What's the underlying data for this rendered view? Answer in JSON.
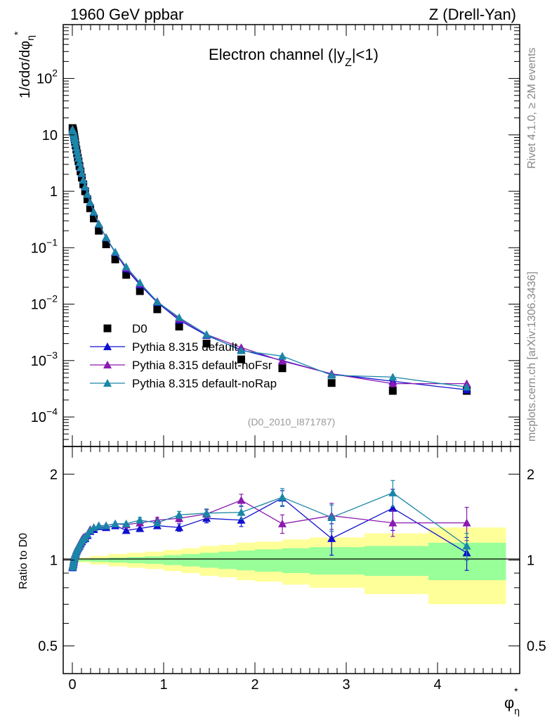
{
  "header": {
    "left_title": "1960 GeV ppbar",
    "right_title": "Z (Drell-Yan)"
  },
  "side_labels": {
    "rivet": "Rivet 4.1.0, ≥ 2M events",
    "mcplots": "mcplots.cern.ch [arXiv:1306.3436]"
  },
  "colors": {
    "data": "#000000",
    "default": "#1010d0",
    "noFsr": "#8a1ab0",
    "noRap": "#1a86a8",
    "band_inner": "#99ff99",
    "band_outer": "#ffff99"
  },
  "chart_data": [
    {
      "type": "scatter",
      "title": "Electron channel (|y_Z|<1)",
      "title_parts": {
        "pre": "Electron channel (|y",
        "sub": "Z",
        "post": "|<1)"
      },
      "watermark": "(D0_2010_I871787)",
      "ylabel": "1/σdσ/dφ*η",
      "yscale": "log",
      "ylim": [
        3e-05,
        900
      ],
      "xlim": [
        -0.1,
        4.9
      ],
      "y_ticks": [
        {
          "value": 100,
          "mant": "10",
          "exp": "2"
        },
        {
          "value": 10,
          "mant": "10",
          "exp": ""
        },
        {
          "value": 1,
          "mant": "1",
          "exp": ""
        },
        {
          "value": 0.1,
          "mant": "10",
          "exp": "−1"
        },
        {
          "value": 0.01,
          "mant": "10",
          "exp": "−2"
        },
        {
          "value": 0.001,
          "mant": "10",
          "exp": "−3"
        },
        {
          "value": 0.0001,
          "mant": "10",
          "exp": "−4"
        }
      ],
      "x": [
        0.002,
        0.006,
        0.01,
        0.014,
        0.018,
        0.022,
        0.026,
        0.03,
        0.036,
        0.044,
        0.052,
        0.06,
        0.068,
        0.078,
        0.09,
        0.104,
        0.12,
        0.14,
        0.165,
        0.195,
        0.235,
        0.29,
        0.37,
        0.47,
        0.59,
        0.74,
        0.93,
        1.17,
        1.47,
        1.85,
        2.3,
        2.84,
        3.51,
        4.32
      ],
      "legend": [
        {
          "key": "data",
          "label": "D0"
        },
        {
          "key": "default",
          "label": "Pythia 8.315 default"
        },
        {
          "key": "noFsr",
          "label": "Pythia 8.315 default-noFsr"
        },
        {
          "key": "noRap",
          "label": "Pythia 8.315 default-noRap"
        }
      ],
      "series": [
        {
          "key": "data",
          "name": "D0",
          "values": [
            13.2,
            12.6,
            11.8,
            10.9,
            10.0,
            9.1,
            8.3,
            7.55,
            6.55,
            5.5,
            4.7,
            3.95,
            3.4,
            2.8,
            2.25,
            1.75,
            1.33,
            1.0,
            0.72,
            0.5,
            0.33,
            0.2,
            0.115,
            0.062,
            0.033,
            0.017,
            0.0081,
            0.004,
            0.002,
            0.00105,
            0.00073,
            0.0004,
            0.00029,
            0.00029
          ]
        },
        {
          "key": "default",
          "name": "Pythia 8.315 default",
          "values": [
            12.4,
            12.0,
            11.4,
            10.7,
            10.0,
            9.25,
            8.55,
            7.85,
            6.9,
            5.9,
            5.1,
            4.4,
            3.85,
            3.2,
            2.6,
            2.05,
            1.57,
            1.19,
            0.88,
            0.63,
            0.425,
            0.262,
            0.15,
            0.082,
            0.042,
            0.022,
            0.0107,
            0.0052,
            0.0028,
            0.00155,
            0.001,
            0.00058,
            0.00043,
            0.000303
          ]
        },
        {
          "key": "noFsr",
          "name": "Pythia 8.315 default-noFsr",
          "values": [
            12.6,
            12.1,
            11.5,
            10.8,
            10.1,
            9.35,
            8.6,
            7.9,
            6.95,
            5.95,
            5.15,
            4.45,
            3.9,
            3.25,
            2.65,
            2.1,
            1.6,
            1.21,
            0.89,
            0.64,
            0.43,
            0.265,
            0.152,
            0.083,
            0.044,
            0.023,
            0.0112,
            0.0055,
            0.0029,
            0.0017,
            0.00098,
            0.00058,
            0.00039,
            0.00039
          ]
        },
        {
          "key": "noRap",
          "name": "Pythia 8.315 default-noRap",
          "values": [
            12.5,
            12.0,
            11.45,
            10.75,
            10.05,
            9.3,
            8.6,
            7.9,
            6.92,
            5.92,
            5.12,
            4.42,
            3.87,
            3.22,
            2.63,
            2.07,
            1.58,
            1.2,
            0.885,
            0.635,
            0.428,
            0.264,
            0.152,
            0.084,
            0.046,
            0.024,
            0.011,
            0.0058,
            0.0029,
            0.0015,
            0.0012,
            0.00055,
            0.00051,
            0.00034
          ]
        }
      ]
    },
    {
      "type": "scatter",
      "title": "",
      "xlabel": "φ*η",
      "ylabel": "Ratio to D0",
      "yscale": "log",
      "ylim": [
        0.4,
        2.5
      ],
      "xlim": [
        -0.1,
        4.9
      ],
      "y_ticks": [
        {
          "value": 0.5,
          "label": "0.5"
        },
        {
          "value": 1,
          "label": "1"
        },
        {
          "value": 2,
          "label": "2"
        }
      ],
      "x_ticks": [
        {
          "value": 0,
          "label": "0"
        },
        {
          "value": 1,
          "label": "1"
        },
        {
          "value": 2,
          "label": "2"
        },
        {
          "value": 3,
          "label": "3"
        },
        {
          "value": 4,
          "label": "4"
        }
      ],
      "band_edges": [
        0,
        0.2,
        0.4,
        0.6,
        0.8,
        1.0,
        1.2,
        1.4,
        1.6,
        1.8,
        2.0,
        2.3,
        2.6,
        3.2,
        3.9,
        4.75
      ],
      "band_inner": [
        0.01,
        0.015,
        0.02,
        0.025,
        0.03,
        0.04,
        0.05,
        0.06,
        0.07,
        0.08,
        0.09,
        0.1,
        0.11,
        0.12,
        0.15
      ],
      "band_outer": [
        0.02,
        0.035,
        0.05,
        0.06,
        0.07,
        0.085,
        0.1,
        0.12,
        0.13,
        0.15,
        0.16,
        0.18,
        0.2,
        0.24,
        0.3
      ],
      "x": [
        0.002,
        0.006,
        0.01,
        0.014,
        0.018,
        0.022,
        0.026,
        0.03,
        0.036,
        0.044,
        0.052,
        0.06,
        0.068,
        0.078,
        0.09,
        0.104,
        0.12,
        0.14,
        0.165,
        0.195,
        0.235,
        0.29,
        0.37,
        0.47,
        0.59,
        0.74,
        0.93,
        1.17,
        1.47,
        1.85,
        2.3,
        2.84,
        3.51,
        4.32
      ],
      "series": [
        {
          "key": "default",
          "name": "Pythia 8.315 default",
          "values": [
            0.94,
            0.95,
            0.965,
            0.98,
            1.0,
            1.015,
            1.03,
            1.04,
            1.05,
            1.07,
            1.085,
            1.1,
            1.11,
            1.12,
            1.14,
            1.16,
            1.18,
            1.19,
            1.22,
            1.26,
            1.28,
            1.31,
            1.3,
            1.32,
            1.27,
            1.29,
            1.32,
            1.3,
            1.4,
            1.38,
            1.65,
            1.19,
            1.52,
            1.06
          ],
          "errors": [
            0.01,
            0.01,
            0.01,
            0.01,
            0.01,
            0.01,
            0.01,
            0.01,
            0.01,
            0.01,
            0.01,
            0.01,
            0.01,
            0.01,
            0.01,
            0.01,
            0.01,
            0.01,
            0.01,
            0.01,
            0.01,
            0.015,
            0.015,
            0.02,
            0.02,
            0.03,
            0.03,
            0.04,
            0.05,
            0.07,
            0.1,
            0.15,
            0.25,
            0.14
          ]
        },
        {
          "key": "noFsr",
          "name": "Pythia 8.315 default-noFsr",
          "values": [
            0.95,
            0.96,
            0.97,
            0.99,
            1.01,
            1.03,
            1.04,
            1.05,
            1.06,
            1.08,
            1.095,
            1.11,
            1.12,
            1.13,
            1.155,
            1.18,
            1.2,
            1.21,
            1.23,
            1.28,
            1.3,
            1.32,
            1.32,
            1.34,
            1.33,
            1.35,
            1.38,
            1.4,
            1.45,
            1.62,
            1.34,
            1.43,
            1.35,
            1.35
          ],
          "errors": [
            0.01,
            0.01,
            0.01,
            0.01,
            0.01,
            0.01,
            0.01,
            0.01,
            0.01,
            0.01,
            0.01,
            0.01,
            0.01,
            0.01,
            0.01,
            0.01,
            0.01,
            0.01,
            0.01,
            0.01,
            0.01,
            0.015,
            0.015,
            0.02,
            0.02,
            0.03,
            0.03,
            0.04,
            0.05,
            0.08,
            0.1,
            0.15,
            0.14,
            0.18
          ]
        },
        {
          "key": "noRap",
          "name": "Pythia 8.315 default-noRap",
          "values": [
            0.945,
            0.955,
            0.97,
            0.985,
            1.005,
            1.02,
            1.035,
            1.045,
            1.055,
            1.075,
            1.09,
            1.105,
            1.115,
            1.125,
            1.15,
            1.17,
            1.19,
            1.2,
            1.23,
            1.27,
            1.3,
            1.32,
            1.32,
            1.34,
            1.34,
            1.38,
            1.35,
            1.44,
            1.46,
            1.47,
            1.66,
            1.41,
            1.72,
            1.12
          ],
          "errors": [
            0.01,
            0.01,
            0.01,
            0.01,
            0.01,
            0.01,
            0.01,
            0.01,
            0.01,
            0.01,
            0.01,
            0.01,
            0.01,
            0.01,
            0.01,
            0.01,
            0.01,
            0.01,
            0.01,
            0.01,
            0.01,
            0.015,
            0.015,
            0.02,
            0.02,
            0.03,
            0.03,
            0.04,
            0.05,
            0.08,
            0.12,
            0.15,
            0.18,
            0.12
          ]
        }
      ]
    }
  ]
}
